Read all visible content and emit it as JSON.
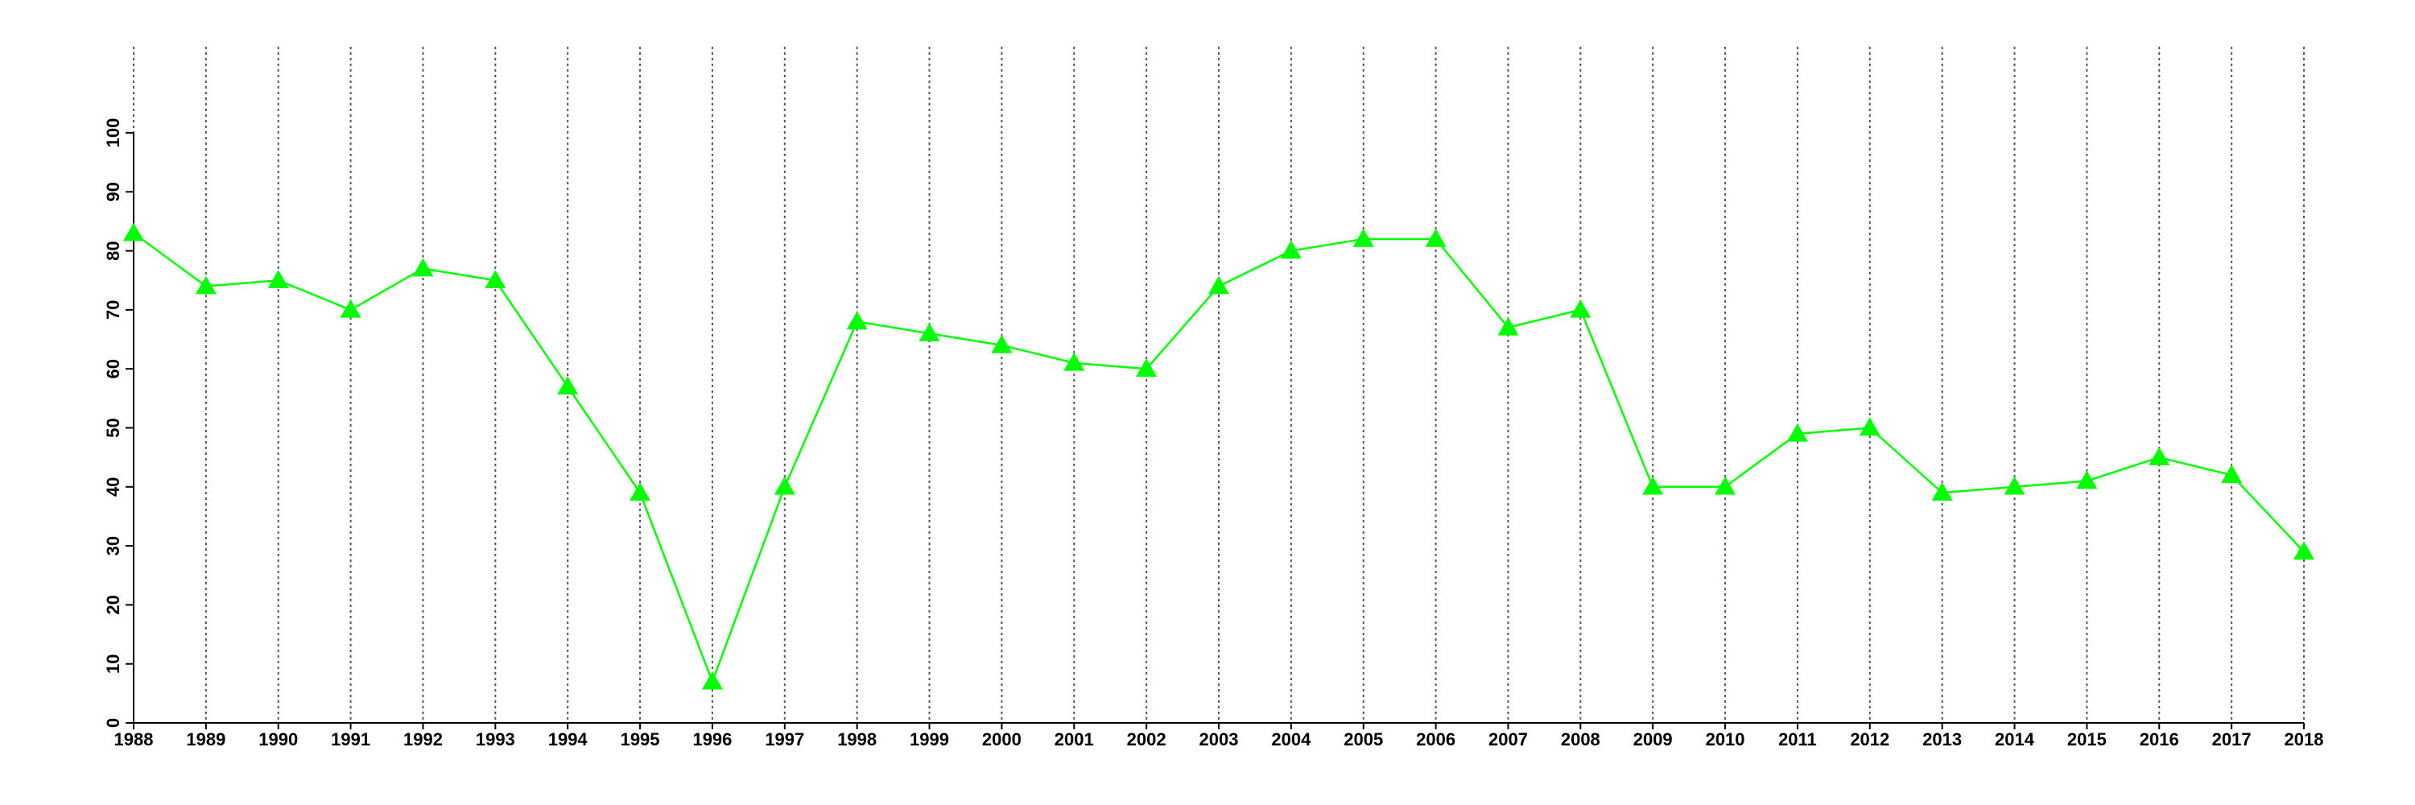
{
  "chart_data": {
    "type": "line",
    "x": [
      1988,
      1989,
      1990,
      1991,
      1992,
      1993,
      1994,
      1995,
      1996,
      1997,
      1998,
      1999,
      2000,
      2001,
      2002,
      2003,
      2004,
      2005,
      2006,
      2007,
      2008,
      2009,
      2010,
      2011,
      2012,
      2013,
      2014,
      2015,
      2016,
      2017,
      2018
    ],
    "values": [
      83,
      74,
      75,
      70,
      77,
      75,
      57,
      39,
      7,
      40,
      68,
      66,
      64,
      61,
      60,
      74,
      80,
      82,
      82,
      67,
      70,
      40,
      40,
      49,
      50,
      39,
      40,
      41,
      45,
      42,
      29
    ],
    "color": "#00ff00",
    "marker": "triangle",
    "xlim": [
      1988,
      2018
    ],
    "xticks": [
      1988,
      1989,
      1990,
      1991,
      1992,
      1993,
      1994,
      1995,
      1996,
      1997,
      1998,
      1999,
      2000,
      2001,
      2002,
      2003,
      2004,
      2005,
      2006,
      2007,
      2008,
      2009,
      2010,
      2011,
      2012,
      2013,
      2014,
      2015,
      2016,
      2017,
      2018
    ],
    "ylim": [
      0,
      100
    ],
    "yticks": [
      0,
      10,
      20,
      30,
      40,
      50,
      60,
      70,
      80,
      90,
      100
    ],
    "grid": "x"
  }
}
